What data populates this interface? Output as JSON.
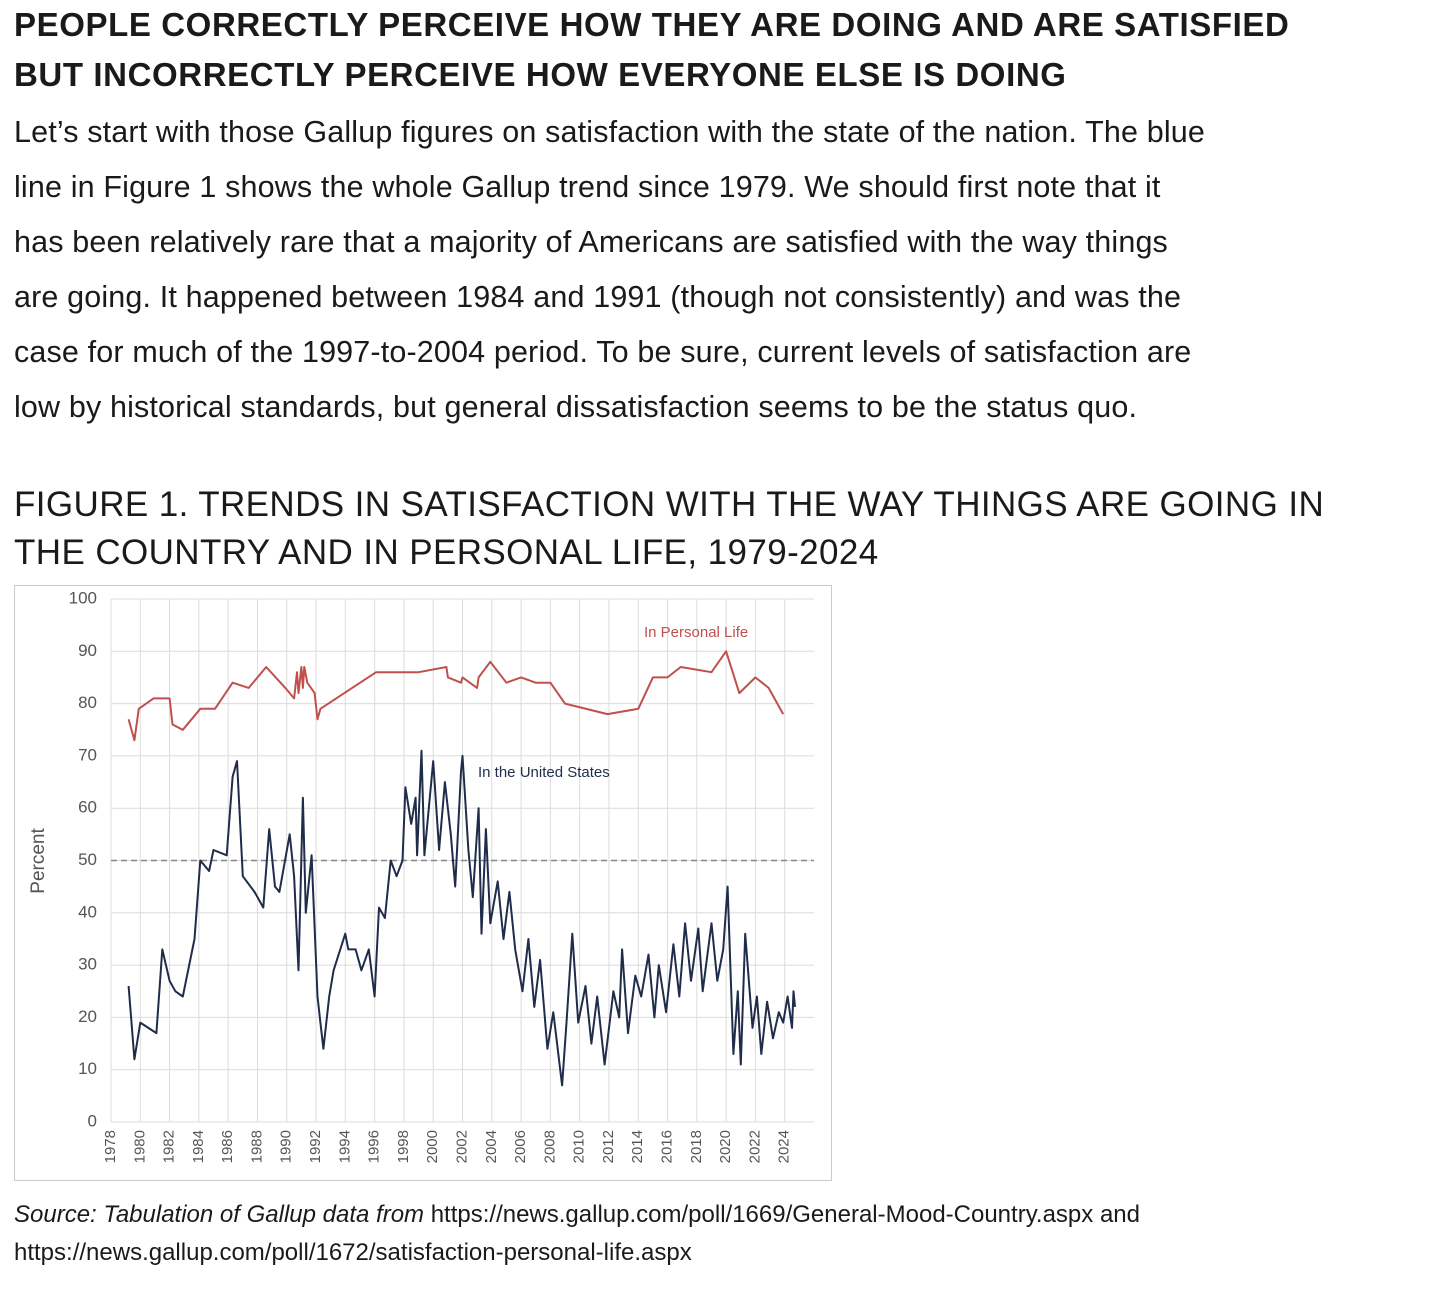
{
  "heading": [
    "PEOPLE CORRECTLY PERCEIVE HOW THEY ARE DOING AND ARE SATISFIED",
    "BUT INCORRECTLY PERCEIVE HOW EVERYONE ELSE IS DOING"
  ],
  "paragraph": [
    "Let’s start with those Gallup figures on satisfaction with the state of the nation. The blue",
    "line in Figure 1 shows the whole Gallup trend since 1979. We should first note that it",
    "has been relatively rare that a majority of Americans are satisfied with the way things",
    "are going. It happened between 1984 and 1991 (though not consistently) and was the",
    "case for much of the 1997-to-2004 period. To be sure, current levels of satisfaction are",
    "low by historical standards, but general dissatisfaction seems to be the status quo."
  ],
  "figure_title": [
    "FIGURE 1. TRENDS IN SATISFACTION WITH THE WAY THINGS ARE GOING IN",
    "THE COUNTRY AND IN PERSONAL LIFE, 1979-2024"
  ],
  "chart_data": {
    "type": "line",
    "y_label": "Percent",
    "xlim": [
      1978,
      2026
    ],
    "xticks": [
      1978,
      1980,
      1982,
      1984,
      1986,
      1988,
      1990,
      1992,
      1994,
      1996,
      1998,
      2000,
      2002,
      2004,
      2006,
      2008,
      2010,
      2012,
      2014,
      2016,
      2018,
      2020,
      2022,
      2024
    ],
    "ylim": [
      0,
      100
    ],
    "yticks": [
      0,
      10,
      20,
      30,
      40,
      50,
      60,
      70,
      80,
      90,
      100
    ],
    "grid": true,
    "reference_line": 50,
    "series": [
      {
        "name": "In Personal Life",
        "color": "#c0504d",
        "x": [
          1979.2,
          1979.6,
          1979.9,
          1980.9,
          1982.0,
          1982.2,
          1982.9,
          1984.1,
          1985.1,
          1986.3,
          1987.4,
          1988.6,
          1989.9,
          1990.5,
          1990.7,
          1990.8,
          1991.0,
          1991.1,
          1991.2,
          1991.4,
          1991.9,
          1992.1,
          1992.3,
          1996.1,
          1999.0,
          2000.9,
          2001.0,
          2001.9,
          2002.0,
          2003.0,
          2003.1,
          2003.9,
          2005.0,
          2006.0,
          2007.0,
          2008.0,
          2009.0,
          2011.9,
          2014.0,
          2015.0,
          2016.0,
          2016.9,
          2019.0,
          2020.0,
          2020.9,
          2022.0,
          2022.9,
          2023.9
        ],
        "values": [
          77,
          73,
          79,
          81,
          81,
          76,
          75,
          79,
          79,
          84,
          83,
          87,
          83,
          81,
          86,
          82,
          87,
          83,
          87,
          84,
          82,
          77,
          79,
          86,
          86,
          87,
          85,
          84,
          85,
          83,
          85,
          88,
          84,
          85,
          84,
          84,
          80,
          78,
          79,
          85,
          85,
          87,
          86,
          90,
          82,
          85,
          83,
          78
        ]
      },
      {
        "name": "In the United States",
        "color": "#1f2d4a",
        "x": [
          1979.2,
          1979.6,
          1980.0,
          1981.1,
          1981.5,
          1982.0,
          1982.4,
          1982.9,
          1983.7,
          1984.1,
          1984.7,
          1985.0,
          1985.9,
          1986.3,
          1986.6,
          1987.0,
          1987.8,
          1988.4,
          1988.8,
          1989.2,
          1989.5,
          1990.2,
          1990.5,
          1990.8,
          1991.1,
          1991.3,
          1991.7,
          1992.1,
          1992.3,
          1992.5,
          1992.9,
          1993.2,
          1994.0,
          1994.2,
          1994.7,
          1995.1,
          1995.6,
          1996.0,
          1996.3,
          1996.7,
          1997.1,
          1997.5,
          1997.9,
          1998.1,
          1998.5,
          1998.8,
          1998.9,
          1999.2,
          1999.4,
          2000.0,
          2000.4,
          2000.8,
          2001.2,
          2001.5,
          2001.9,
          2002.0,
          2002.4,
          2002.7,
          2003.1,
          2003.3,
          2003.6,
          2003.9,
          2004.4,
          2004.8,
          2005.2,
          2005.6,
          2006.1,
          2006.5,
          2006.9,
          2007.3,
          2007.8,
          2008.2,
          2008.8,
          2009.1,
          2009.5,
          2009.9,
          2010.4,
          2010.8,
          2011.2,
          2011.7,
          2012.3,
          2012.7,
          2012.9,
          2013.3,
          2013.8,
          2014.2,
          2014.7,
          2015.1,
          2015.4,
          2015.9,
          2016.4,
          2016.8,
          2017.2,
          2017.6,
          2018.1,
          2018.4,
          2019.0,
          2019.4,
          2019.8,
          2020.1,
          2020.5,
          2020.8,
          2021.0,
          2021.3,
          2021.8,
          2022.1,
          2022.4,
          2022.8,
          2023.2,
          2023.6,
          2023.9,
          2024.2,
          2024.5,
          2024.6,
          2024.7
        ],
        "values": [
          26,
          12,
          19,
          17,
          33,
          27,
          25,
          24,
          35,
          50,
          48,
          52,
          51,
          66,
          69,
          47,
          44,
          41,
          56,
          45,
          44,
          55,
          47,
          29,
          62,
          40,
          51,
          24,
          19,
          14,
          24,
          29,
          36,
          33,
          33,
          29,
          33,
          24,
          41,
          39,
          50,
          47,
          50,
          64,
          57,
          62,
          51,
          71,
          51,
          69,
          52,
          65,
          55,
          45,
          67,
          70,
          52,
          43,
          60,
          36,
          56,
          38,
          46,
          35,
          44,
          33,
          25,
          35,
          22,
          31,
          14,
          21,
          7,
          19,
          36,
          19,
          26,
          15,
          24,
          11,
          25,
          20,
          33,
          17,
          28,
          24,
          32,
          20,
          30,
          21,
          34,
          24,
          38,
          27,
          37,
          25,
          38,
          27,
          33,
          45,
          13,
          25,
          11,
          36,
          18,
          24,
          13,
          23,
          16,
          21,
          19,
          24,
          18,
          25,
          22
        ]
      }
    ]
  },
  "source": {
    "label": "Source: Tabulation of Gallup data from",
    "text": "https://news.gallup.com/poll/1669/General-Mood-Country.aspx and https://news.gallup.com/poll/1672/satisfaction-personal-life.aspx"
  }
}
